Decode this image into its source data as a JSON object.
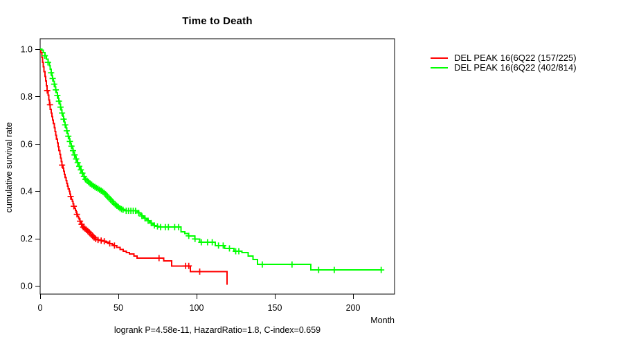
{
  "figure": {
    "title": "Time to Death",
    "xlabel": "Month",
    "ylabel": "cumulative survival rate",
    "annotation": "logrank P=4.58e-11, HazardRatio=1.8, C-index=0.659"
  },
  "chart_data": {
    "type": "line",
    "subtype": "kaplan-meier-step-curves",
    "title": "Time to Death",
    "xlabel": "Month",
    "ylabel": "cumulative survival rate",
    "annotation": "logrank P=4.58e-11, HazardRatio=1.8, C-index=0.659",
    "xlim": [
      0,
      226
    ],
    "ylim": [
      0,
      1.0
    ],
    "xticks": [
      0,
      50,
      100,
      150,
      200
    ],
    "yticks": [
      0.0,
      0.2,
      0.4,
      0.6,
      0.8,
      1.0
    ],
    "grid": false,
    "legend_position": "right-outside",
    "axis_color": "#000000",
    "censor_marker": "plus",
    "series": [
      {
        "name": "DEL PEAK 16(6Q22 (157/225)",
        "color": "#ff0000",
        "events": "157/225",
        "points": [
          [
            0,
            1.0
          ],
          [
            0.5,
            0.985
          ],
          [
            1,
            0.965
          ],
          [
            1.5,
            0.945
          ],
          [
            2,
            0.925
          ],
          [
            2.5,
            0.905
          ],
          [
            3,
            0.885
          ],
          [
            3.5,
            0.865
          ],
          [
            4,
            0.845
          ],
          [
            4.5,
            0.825
          ],
          [
            5,
            0.805
          ],
          [
            5.5,
            0.785
          ],
          [
            6,
            0.765
          ],
          [
            6.5,
            0.745
          ],
          [
            7,
            0.73
          ],
          [
            7.5,
            0.715
          ],
          [
            8,
            0.7
          ],
          [
            8.5,
            0.685
          ],
          [
            9,
            0.668
          ],
          [
            9.5,
            0.652
          ],
          [
            10,
            0.636
          ],
          [
            10.5,
            0.62
          ],
          [
            11,
            0.604
          ],
          [
            11.5,
            0.588
          ],
          [
            12,
            0.572
          ],
          [
            12.5,
            0.556
          ],
          [
            13,
            0.54
          ],
          [
            13.5,
            0.525
          ],
          [
            14,
            0.51
          ],
          [
            14.5,
            0.497
          ],
          [
            15,
            0.484
          ],
          [
            15.5,
            0.471
          ],
          [
            16,
            0.458
          ],
          [
            16.5,
            0.445
          ],
          [
            17,
            0.433
          ],
          [
            17.5,
            0.421
          ],
          [
            18,
            0.41
          ],
          [
            18.5,
            0.399
          ],
          [
            19,
            0.388
          ],
          [
            19.5,
            0.377
          ],
          [
            20,
            0.366
          ],
          [
            20.5,
            0.356
          ],
          [
            21,
            0.346
          ],
          [
            21.5,
            0.336
          ],
          [
            22,
            0.327
          ],
          [
            22.5,
            0.318
          ],
          [
            23,
            0.31
          ],
          [
            23.5,
            0.302
          ],
          [
            24,
            0.294
          ],
          [
            24.5,
            0.287
          ],
          [
            25,
            0.28
          ],
          [
            25.5,
            0.273
          ],
          [
            26,
            0.266
          ],
          [
            26.5,
            0.26
          ],
          [
            27,
            0.254
          ],
          [
            27.5,
            0.248
          ],
          [
            28,
            0.243
          ],
          [
            29,
            0.237
          ],
          [
            30,
            0.231
          ],
          [
            31,
            0.225
          ],
          [
            32,
            0.218
          ],
          [
            33,
            0.211
          ],
          [
            34,
            0.204
          ],
          [
            35,
            0.198
          ],
          [
            36,
            0.194
          ],
          [
            38,
            0.191
          ],
          [
            40,
            0.188
          ],
          [
            42,
            0.184
          ],
          [
            44,
            0.179
          ],
          [
            46,
            0.174
          ],
          [
            47,
            0.17
          ],
          [
            49,
            0.162
          ],
          [
            51,
            0.154
          ],
          [
            53,
            0.146
          ],
          [
            55,
            0.14
          ],
          [
            57,
            0.134
          ],
          [
            60,
            0.126
          ],
          [
            62,
            0.117
          ],
          [
            79,
            0.105
          ],
          [
            84,
            0.084
          ],
          [
            96,
            0.06
          ],
          [
            119.5,
            0.005
          ]
        ],
        "censor_times": [
          4.5,
          6.3,
          14,
          19.5,
          21.5,
          23.5,
          25.5,
          26.5,
          27.5,
          28.5,
          29.5,
          30.5,
          31.5,
          32.5,
          33.5,
          34.5,
          35.5,
          37,
          39,
          41,
          44.5,
          47.5,
          76,
          93,
          95,
          102
        ]
      },
      {
        "name": "DEL PEAK 16(6Q22 (402/814)",
        "color": "#00ff00",
        "events": "402/814",
        "points": [
          [
            0,
            1.0
          ],
          [
            1,
            0.995
          ],
          [
            2,
            0.985
          ],
          [
            3,
            0.972
          ],
          [
            4,
            0.958
          ],
          [
            5,
            0.944
          ],
          [
            6,
            0.93
          ],
          [
            6.5,
            0.915
          ],
          [
            7,
            0.9
          ],
          [
            7.5,
            0.888
          ],
          [
            8,
            0.876
          ],
          [
            8.5,
            0.864
          ],
          [
            9,
            0.852
          ],
          [
            9.5,
            0.84
          ],
          [
            10,
            0.828
          ],
          [
            10.5,
            0.816
          ],
          [
            11,
            0.804
          ],
          [
            11.5,
            0.792
          ],
          [
            12,
            0.78
          ],
          [
            12.5,
            0.768
          ],
          [
            13,
            0.755
          ],
          [
            13.5,
            0.742
          ],
          [
            14,
            0.73
          ],
          [
            14.5,
            0.717
          ],
          [
            15,
            0.704
          ],
          [
            15.5,
            0.692
          ],
          [
            16,
            0.68
          ],
          [
            16.5,
            0.667
          ],
          [
            17,
            0.655
          ],
          [
            17.5,
            0.643
          ],
          [
            18,
            0.632
          ],
          [
            18.5,
            0.621
          ],
          [
            19,
            0.61
          ],
          [
            19.5,
            0.6
          ],
          [
            20,
            0.59
          ],
          [
            20.5,
            0.58
          ],
          [
            21,
            0.571
          ],
          [
            21.5,
            0.562
          ],
          [
            22,
            0.553
          ],
          [
            22.5,
            0.544
          ],
          [
            23,
            0.536
          ],
          [
            23.5,
            0.528
          ],
          [
            24,
            0.52
          ],
          [
            24.5,
            0.512
          ],
          [
            25,
            0.505
          ],
          [
            25.5,
            0.497
          ],
          [
            26,
            0.49
          ],
          [
            26.5,
            0.483
          ],
          [
            27,
            0.476
          ],
          [
            27.5,
            0.469
          ],
          [
            28,
            0.462
          ],
          [
            28.5,
            0.456
          ],
          [
            29,
            0.45
          ],
          [
            30,
            0.444
          ],
          [
            31,
            0.438
          ],
          [
            32,
            0.432
          ],
          [
            33,
            0.427
          ],
          [
            34,
            0.422
          ],
          [
            35,
            0.418
          ],
          [
            36,
            0.414
          ],
          [
            37,
            0.41
          ],
          [
            38,
            0.406
          ],
          [
            39,
            0.402
          ],
          [
            40,
            0.398
          ],
          [
            41,
            0.392
          ],
          [
            42,
            0.385
          ],
          [
            43,
            0.378
          ],
          [
            44,
            0.371
          ],
          [
            45,
            0.364
          ],
          [
            46,
            0.357
          ],
          [
            47,
            0.35
          ],
          [
            48,
            0.344
          ],
          [
            49,
            0.338
          ],
          [
            50,
            0.333
          ],
          [
            51,
            0.328
          ],
          [
            52,
            0.324
          ],
          [
            53,
            0.321
          ],
          [
            54,
            0.319
          ],
          [
            55,
            0.317
          ],
          [
            62,
            0.315
          ],
          [
            63,
            0.308
          ],
          [
            64,
            0.301
          ],
          [
            65,
            0.295
          ],
          [
            66,
            0.29
          ],
          [
            67,
            0.285
          ],
          [
            68,
            0.28
          ],
          [
            69,
            0.275
          ],
          [
            70,
            0.27
          ],
          [
            71,
            0.265
          ],
          [
            72,
            0.26
          ],
          [
            73,
            0.255
          ],
          [
            74,
            0.251
          ],
          [
            75.5,
            0.248
          ],
          [
            90,
            0.228
          ],
          [
            92.5,
            0.221
          ],
          [
            95,
            0.211
          ],
          [
            99,
            0.198
          ],
          [
            102,
            0.184
          ],
          [
            112,
            0.17
          ],
          [
            118,
            0.158
          ],
          [
            124,
            0.146
          ],
          [
            129,
            0.14
          ],
          [
            133,
            0.126
          ],
          [
            136,
            0.111
          ],
          [
            139,
            0.09
          ],
          [
            173,
            0.067
          ],
          [
            218,
            0.067
          ]
        ],
        "censor_times": [
          3,
          5,
          7,
          8,
          9,
          10,
          11,
          12,
          13,
          14,
          15,
          16,
          17,
          18,
          19,
          20,
          21,
          22,
          23,
          24,
          25,
          26,
          27,
          28,
          29,
          30,
          31,
          32,
          33,
          34,
          35,
          36,
          37,
          38,
          39,
          40,
          41,
          42,
          43,
          44,
          45,
          46,
          47,
          48,
          49,
          50,
          51,
          52,
          53,
          55,
          56.5,
          58,
          59.5,
          61,
          63,
          65,
          67,
          69,
          71,
          73,
          75,
          77,
          80,
          82,
          86,
          88.5,
          95,
          99,
          103,
          107,
          110,
          114,
          117,
          121,
          125,
          127,
          142,
          161,
          178,
          188,
          218
        ]
      }
    ]
  }
}
